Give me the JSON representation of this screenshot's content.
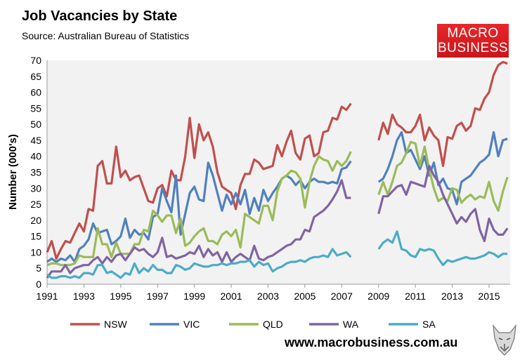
{
  "chart_data": {
    "type": "line",
    "title": "Job Vacancies by State",
    "subtitle": "Source: Australian Bureau of Statistics",
    "ylabel": "Number (000's)",
    "xlabel": "",
    "ylim": [
      0,
      70
    ],
    "yticks": [
      0,
      5,
      10,
      15,
      20,
      25,
      30,
      35,
      40,
      45,
      50,
      55,
      60,
      65,
      70
    ],
    "xlim": [
      1991,
      2016
    ],
    "xticks": [
      "1991",
      "1993",
      "1995",
      "1997",
      "1999",
      "2001",
      "2003",
      "2005",
      "2007",
      "2009",
      "2011",
      "2013",
      "2015"
    ],
    "grid": false,
    "legend_position": "bottom",
    "x_segments": [
      {
        "start": 1991.0,
        "step": 0.25
      },
      {
        "start": 2009.0,
        "step": 0.25
      }
    ],
    "series": [
      {
        "name": "NSW",
        "color": "#c0504d",
        "segments": [
          [
            10,
            13.5,
            8,
            11,
            13.5,
            13,
            16,
            19,
            16.5,
            23.5,
            23,
            37,
            38.5,
            31.5,
            31.5,
            43,
            33.5,
            35.5,
            32.5,
            33.5,
            34,
            30,
            26,
            25.5,
            30,
            31,
            27.5,
            35.5,
            32.5,
            32.5,
            40,
            52,
            39.5,
            50,
            45,
            47.5,
            43,
            35,
            30.5,
            29.5,
            28.5,
            23.5,
            31,
            34.5,
            34.5,
            39,
            38,
            36,
            36.5,
            37,
            43.5,
            40,
            44.5,
            48,
            41,
            39,
            45.5,
            46.5,
            40,
            41,
            47.5,
            48,
            52,
            51.5,
            55.5,
            54.5,
            56.5
          ],
          [
            45,
            50.5,
            47,
            53,
            50,
            49,
            47.5,
            47.5,
            49.5,
            53,
            45,
            49,
            46.5,
            45,
            37,
            46,
            45.5,
            49.5,
            50.5,
            48,
            49.5,
            55,
            54.5,
            58,
            60,
            65.5,
            68.5,
            69.5,
            69
          ]
        ]
      },
      {
        "name": "VIC",
        "color": "#4f81bd",
        "segments": [
          [
            7,
            8,
            7,
            8,
            7.5,
            9,
            7,
            11,
            12,
            14,
            19,
            16,
            16.5,
            17,
            12.5,
            13.5,
            15,
            20.5,
            14.5,
            17,
            15.5,
            16,
            14,
            21,
            22,
            30,
            26,
            22.5,
            34,
            15.5,
            22,
            28.5,
            30.5,
            26.5,
            26,
            38,
            34,
            28.5,
            23,
            28,
            25,
            28.5,
            25,
            29.5,
            22,
            27,
            23,
            29.5,
            26,
            28.5,
            30.5,
            33,
            34,
            33,
            31,
            32.5,
            30,
            32,
            33,
            32,
            32,
            31.5,
            32,
            31.5,
            36,
            36.5,
            38.5
          ],
          [
            32,
            33,
            36,
            40,
            45,
            47.5,
            41,
            42,
            39,
            36,
            40,
            34,
            38,
            31,
            33,
            30,
            29.5,
            25,
            32,
            33,
            34,
            36,
            38,
            39,
            40.5,
            47.5,
            40,
            45,
            45.5
          ]
        ]
      },
      {
        "name": "QLD",
        "color": "#9bbb59",
        "segments": [
          [
            6,
            6.5,
            6.5,
            6,
            6,
            6,
            6.5,
            9,
            8.5,
            8.5,
            8.5,
            17.5,
            12.5,
            12.5,
            8.5,
            13,
            9.5,
            9.5,
            9.5,
            12.5,
            12.5,
            17,
            16.5,
            23,
            21.5,
            19.5,
            21.5,
            21.5,
            16,
            20.5,
            12,
            13,
            15,
            16.5,
            17.5,
            13.5,
            13.5,
            12.5,
            15.5,
            16.5,
            15,
            17,
            11.5,
            22,
            21,
            20,
            19,
            24.5,
            24.5,
            20,
            29,
            33,
            34,
            35.5,
            35,
            33,
            24,
            32,
            37,
            40,
            39,
            38.5,
            35.5,
            38.5,
            37,
            38.5,
            41.5
          ],
          [
            28,
            32,
            28,
            32,
            37,
            38,
            41,
            44.5,
            44,
            37,
            43,
            36,
            30,
            26,
            27,
            26,
            30,
            29.5,
            25.5,
            27,
            28,
            26.5,
            27.5,
            27,
            32,
            26,
            23,
            29,
            33.5
          ]
        ]
      },
      {
        "name": "WA",
        "color": "#8064a2",
        "segments": [
          [
            2,
            4,
            4,
            4,
            6,
            3.5,
            5,
            5.5,
            6,
            6,
            7.5,
            8.5,
            6.5,
            8.5,
            7,
            9,
            9.5,
            7.5,
            9.5,
            11.5,
            10.5,
            11,
            9.5,
            8.5,
            10,
            14.5,
            8.5,
            9,
            8,
            8.5,
            9,
            10,
            9.5,
            12,
            8.5,
            11,
            9,
            10,
            7,
            10,
            7,
            8.5,
            9.5,
            8.5,
            7.5,
            12,
            8,
            7.5,
            8.5,
            9,
            10,
            11,
            12,
            12.5,
            14,
            14,
            17,
            16.5,
            21,
            22,
            23,
            24.5,
            26.5,
            29,
            32.5,
            27,
            27
          ],
          [
            22,
            27.5,
            27.5,
            29,
            30.5,
            31,
            28,
            32,
            31.5,
            31,
            30.5,
            37,
            34,
            32,
            28,
            25,
            22,
            19,
            21,
            19.5,
            22,
            23.5,
            17,
            13.5,
            20.5,
            17,
            15.5,
            15.5,
            17.5
          ]
        ]
      },
      {
        "name": "SA",
        "color": "#4bacc6",
        "segments": [
          [
            3,
            2,
            2,
            2.5,
            2.5,
            2,
            2.5,
            2,
            3.5,
            3.5,
            3,
            6,
            6,
            3.5,
            4,
            3,
            2,
            3.5,
            3,
            6.5,
            3.5,
            5,
            4,
            6,
            4.5,
            4.5,
            3.5,
            3.5,
            6,
            5.5,
            4.5,
            5,
            6.5,
            6,
            5.5,
            5.5,
            6,
            6,
            6.5,
            6,
            6.5,
            6.5,
            7,
            7,
            7.5,
            5.5,
            7,
            6,
            6.5,
            4,
            5,
            5.5,
            6.5,
            7,
            7,
            7.5,
            7,
            8,
            8.5,
            8.5,
            9,
            8.5,
            11,
            9,
            9.5,
            10,
            8.5
          ],
          [
            11,
            13,
            14,
            13,
            16.5,
            11,
            10.5,
            9,
            8.5,
            11,
            10.5,
            11,
            10.5,
            8,
            6,
            7.5,
            7,
            7.5,
            8,
            8.5,
            8,
            8,
            8.5,
            9,
            10,
            9.5,
            8.5,
            9.5,
            9.5
          ]
        ]
      }
    ]
  },
  "logo": {
    "line1": "MACRO",
    "line2": "BUSINESS"
  },
  "footer": {
    "url": "www.macrobusiness.com.au"
  },
  "icons": {
    "wolf": "wolf-logo-icon"
  }
}
